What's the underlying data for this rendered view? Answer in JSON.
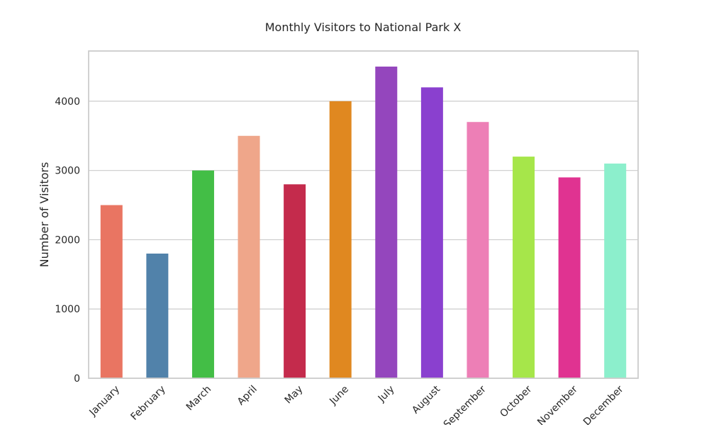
{
  "chart_data": {
    "type": "bar",
    "title": "Monthly Visitors to National Park X",
    "xlabel": "",
    "ylabel": "Number of Visitors",
    "categories": [
      "January",
      "February",
      "March",
      "April",
      "May",
      "June",
      "July",
      "August",
      "September",
      "October",
      "November",
      "December"
    ],
    "values": [
      2500,
      1800,
      3000,
      3500,
      2800,
      4000,
      4500,
      4200,
      3700,
      3200,
      2900,
      3100
    ],
    "colors": [
      "#e97562",
      "#5182aa",
      "#43be46",
      "#efa68a",
      "#c42b4c",
      "#e08820",
      "#9446bd",
      "#8a40cf",
      "#ed7fb6",
      "#a6e64a",
      "#e03391",
      "#8cefcc"
    ],
    "yticks": [
      0,
      1000,
      2000,
      3000,
      4000
    ],
    "ylim": [
      0,
      4725
    ],
    "grid": true,
    "legend": "none"
  }
}
